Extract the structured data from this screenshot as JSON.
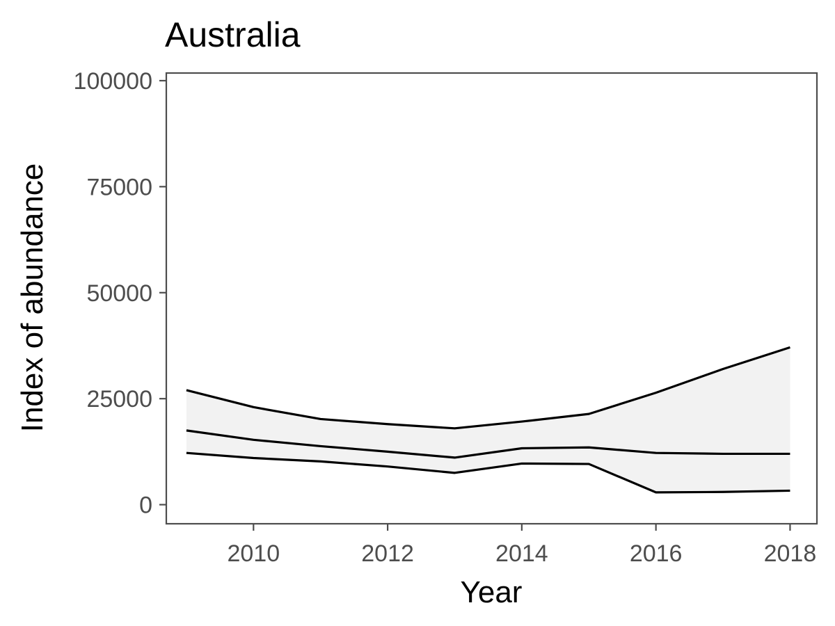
{
  "chart_data": {
    "type": "area",
    "title": "Australia",
    "xlabel": "Year",
    "ylabel": "Index of abundance",
    "xlim": [
      2008.7,
      2018.4
    ],
    "ylim": [
      -4500,
      101800
    ],
    "x_ticks": [
      2010,
      2012,
      2014,
      2016,
      2018
    ],
    "x_tick_labels": [
      "2010",
      "2012",
      "2014",
      "2016",
      "2018"
    ],
    "y_ticks": [
      0,
      25000,
      50000,
      75000,
      100000
    ],
    "y_tick_labels": [
      "0",
      "25000",
      "50000",
      "75000",
      "100000"
    ],
    "grid": false,
    "legend": "none",
    "x": [
      2009,
      2010,
      2011,
      2012,
      2013,
      2014,
      2015,
      2016,
      2017,
      2018
    ],
    "series": [
      {
        "role": "upper",
        "values": [
          27000,
          23000,
          20200,
          19000,
          18000,
          19600,
          21400,
          26400,
          32000,
          37100
        ]
      },
      {
        "role": "estimate",
        "values": [
          17500,
          15300,
          13800,
          12500,
          11100,
          13300,
          13500,
          12200,
          12000,
          12000
        ]
      },
      {
        "role": "lower",
        "values": [
          12200,
          11000,
          10200,
          9000,
          7500,
          9700,
          9600,
          2900,
          3000,
          3300
        ]
      }
    ],
    "ribbon_color": "#f2f2f2",
    "line_color": "#000000"
  }
}
